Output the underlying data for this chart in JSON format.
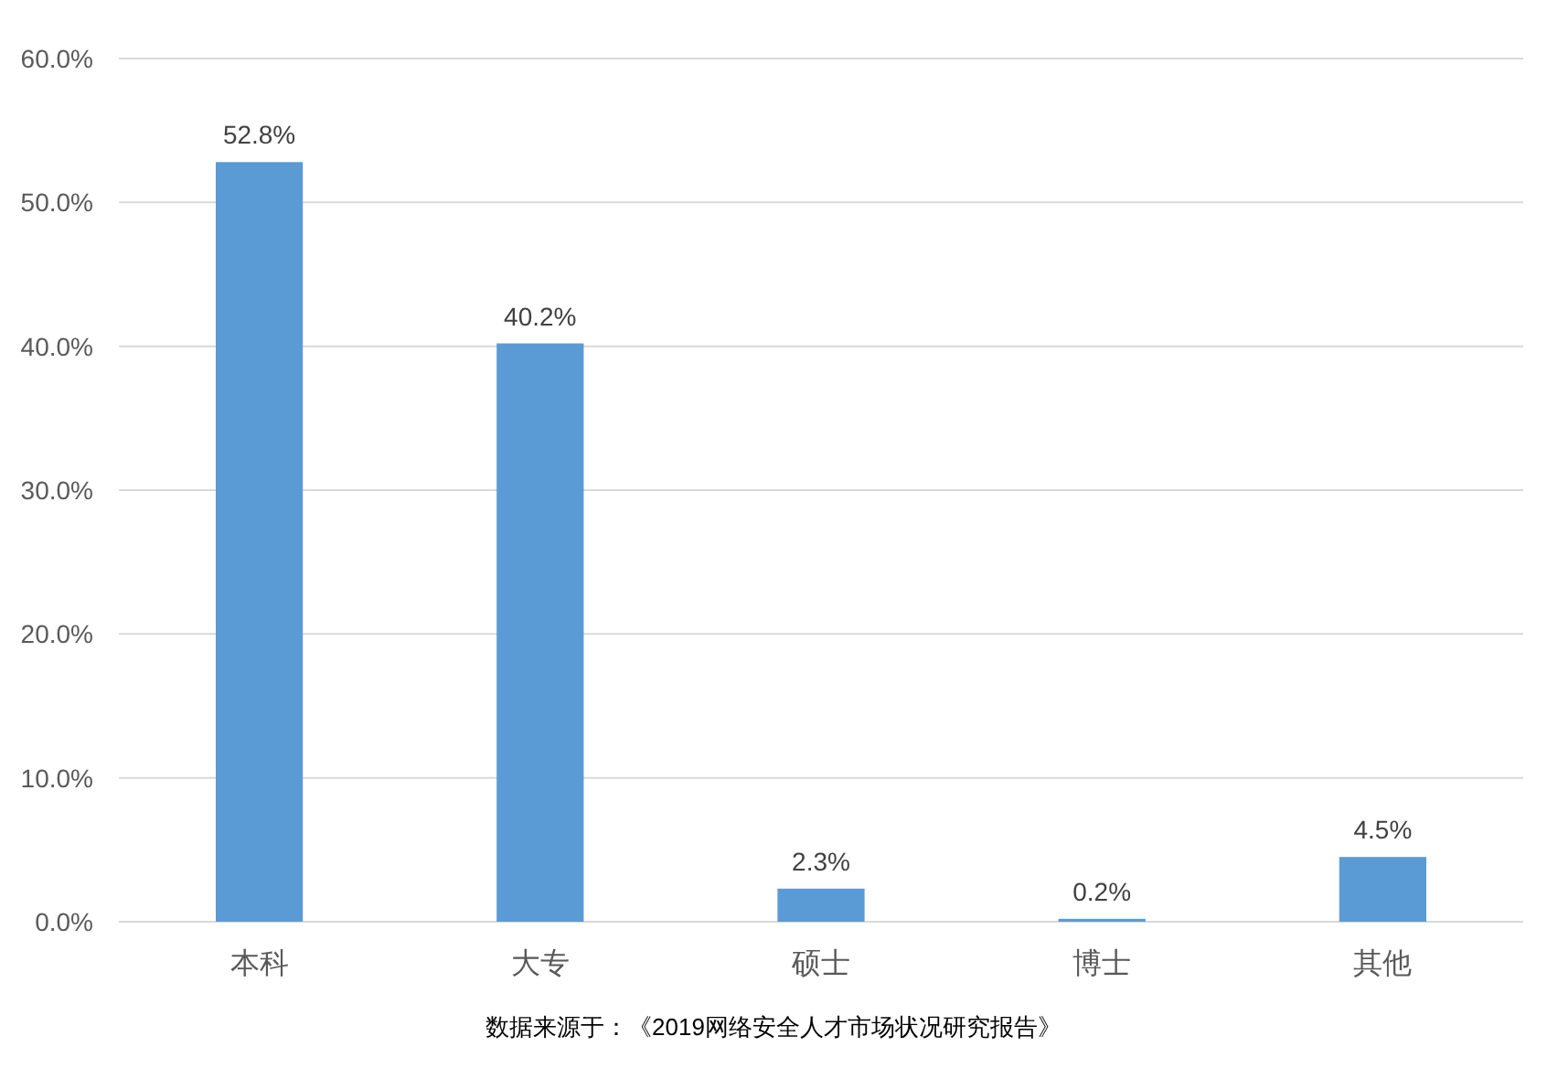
{
  "chart_data": {
    "type": "bar",
    "categories": [
      "本科",
      "大专",
      "硕士",
      "博士",
      "其他"
    ],
    "values": [
      52.8,
      40.2,
      2.3,
      0.2,
      4.5
    ],
    "value_labels": [
      "52.8%",
      "40.2%",
      "2.3%",
      "0.2%",
      "4.5%"
    ],
    "color": "#5b9bd5",
    "ylim": [
      0,
      60
    ],
    "yticks": [
      {
        "value": 0,
        "label": "0.0%"
      },
      {
        "value": 10,
        "label": "10.0%"
      },
      {
        "value": 20,
        "label": "20.0%"
      },
      {
        "value": 30,
        "label": "30.0%"
      },
      {
        "value": 40,
        "label": "40.0%"
      },
      {
        "value": 50,
        "label": "50.0%"
      },
      {
        "value": 60,
        "label": "60.0%"
      }
    ],
    "grid": "y",
    "annotations": [
      "数据来源于：《2019网络安全人才市场状况研究报告》"
    ]
  }
}
